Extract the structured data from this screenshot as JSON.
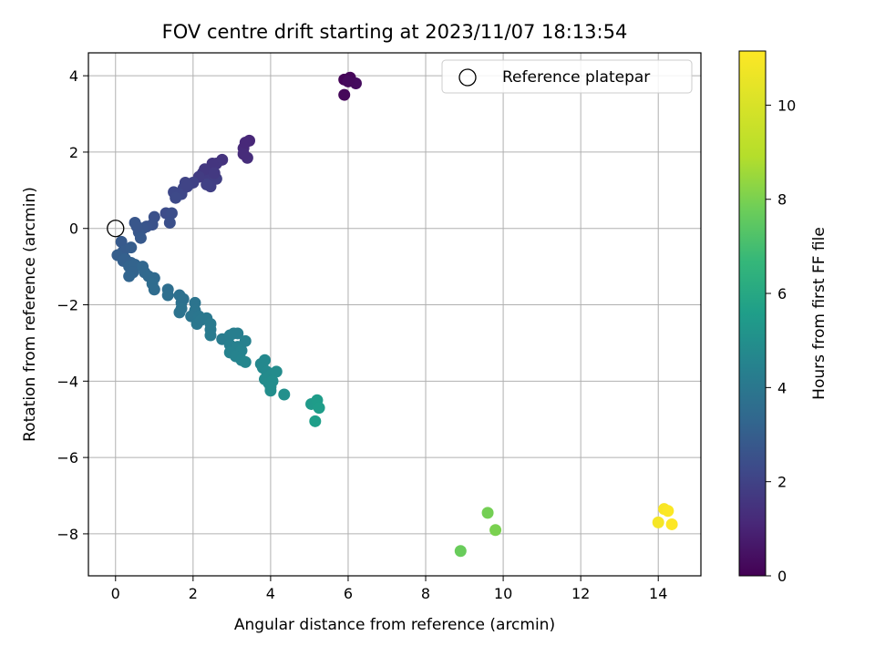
{
  "chart_data": {
    "type": "scatter",
    "title": "FOV centre drift starting at 2023/11/07 18:13:54",
    "xlabel": "Angular distance from reference (arcmin)",
    "ylabel": "Rotation from reference (arcmin)",
    "xlim": [
      -0.7,
      15.1
    ],
    "ylim": [
      -9.1,
      4.6
    ],
    "xticks": [
      0,
      2,
      4,
      6,
      8,
      10,
      12,
      14
    ],
    "yticks": [
      -8,
      -6,
      -4,
      -2,
      0,
      2,
      4
    ],
    "xtick_labels": [
      "0",
      "2",
      "4",
      "6",
      "8",
      "10",
      "12",
      "14"
    ],
    "ytick_labels": [
      "−8",
      "−6",
      "−4",
      "−2",
      "0",
      "2",
      "4"
    ],
    "grid": true,
    "legend": {
      "position": "top-right",
      "entries": [
        "Reference platepar"
      ]
    },
    "colorbar": {
      "label": "Hours from first FF file",
      "range": [
        0,
        11.15
      ],
      "ticks": [
        0,
        2,
        4,
        6,
        8,
        10
      ],
      "tick_labels": [
        "0",
        "2",
        "4",
        "6",
        "8",
        "10"
      ],
      "colormap": "viridis"
    },
    "reference_point": {
      "x": 0,
      "y": 0
    },
    "series": [
      {
        "points": [
          {
            "x": 5.9,
            "y": 3.9,
            "c": 0.1
          },
          {
            "x": 6.05,
            "y": 3.95,
            "c": 0.15
          },
          {
            "x": 6.2,
            "y": 3.8,
            "c": 0.3
          },
          {
            "x": 5.9,
            "y": 3.5,
            "c": 0.2
          },
          {
            "x": 6.0,
            "y": 3.85,
            "c": 0.25
          },
          {
            "x": 3.45,
            "y": 2.3,
            "c": 1.1
          },
          {
            "x": 3.3,
            "y": 2.1,
            "c": 1.2
          },
          {
            "x": 3.4,
            "y": 1.85,
            "c": 1.3
          },
          {
            "x": 3.35,
            "y": 2.25,
            "c": 1.15
          },
          {
            "x": 3.3,
            "y": 1.95,
            "c": 1.25
          },
          {
            "x": 2.75,
            "y": 1.8,
            "c": 1.5
          },
          {
            "x": 2.6,
            "y": 1.7,
            "c": 1.6
          },
          {
            "x": 2.5,
            "y": 1.5,
            "c": 1.7
          },
          {
            "x": 2.4,
            "y": 1.4,
            "c": 1.8
          },
          {
            "x": 2.25,
            "y": 1.45,
            "c": 1.75
          },
          {
            "x": 2.5,
            "y": 1.7,
            "c": 1.55
          },
          {
            "x": 2.6,
            "y": 1.3,
            "c": 1.85
          },
          {
            "x": 2.45,
            "y": 1.1,
            "c": 1.9
          },
          {
            "x": 2.35,
            "y": 1.15,
            "c": 1.95
          },
          {
            "x": 2.3,
            "y": 1.55,
            "c": 1.65
          },
          {
            "x": 2.15,
            "y": 1.35,
            "c": 1.8
          },
          {
            "x": 2.55,
            "y": 1.45,
            "c": 1.7
          },
          {
            "x": 2.0,
            "y": 1.2,
            "c": 2.0
          },
          {
            "x": 1.8,
            "y": 1.2,
            "c": 2.05
          },
          {
            "x": 1.75,
            "y": 1.05,
            "c": 2.1
          },
          {
            "x": 1.7,
            "y": 0.9,
            "c": 2.15
          },
          {
            "x": 1.5,
            "y": 0.95,
            "c": 2.2
          },
          {
            "x": 1.55,
            "y": 0.8,
            "c": 2.25
          },
          {
            "x": 1.85,
            "y": 1.1,
            "c": 2.05
          },
          {
            "x": 1.3,
            "y": 0.4,
            "c": 2.35
          },
          {
            "x": 1.45,
            "y": 0.4,
            "c": 2.4
          },
          {
            "x": 1.4,
            "y": 0.15,
            "c": 2.45
          },
          {
            "x": 1.0,
            "y": 0.3,
            "c": 2.5
          },
          {
            "x": 0.95,
            "y": 0.1,
            "c": 2.55
          },
          {
            "x": 0.8,
            "y": 0.05,
            "c": 2.6
          },
          {
            "x": 0.7,
            "y": 0.0,
            "c": 2.65
          },
          {
            "x": 0.5,
            "y": 0.15,
            "c": 2.7
          },
          {
            "x": 0.6,
            "y": -0.1,
            "c": 2.75
          },
          {
            "x": 0.65,
            "y": -0.25,
            "c": 2.8
          },
          {
            "x": 0.55,
            "y": 0.05,
            "c": 2.7
          },
          {
            "x": 0.15,
            "y": -0.35,
            "c": 2.85
          },
          {
            "x": 0.2,
            "y": -0.6,
            "c": 2.9
          },
          {
            "x": 0.4,
            "y": -0.5,
            "c": 2.95
          },
          {
            "x": 0.05,
            "y": -0.7,
            "c": 3.0
          },
          {
            "x": 0.25,
            "y": -0.8,
            "c": 3.05
          },
          {
            "x": 0.4,
            "y": -0.9,
            "c": 3.1
          },
          {
            "x": 0.2,
            "y": -0.85,
            "c": 3.05
          },
          {
            "x": 0.35,
            "y": -1.0,
            "c": 3.15
          },
          {
            "x": 0.5,
            "y": -0.95,
            "c": 3.2
          },
          {
            "x": 0.45,
            "y": -1.15,
            "c": 3.2
          },
          {
            "x": 0.35,
            "y": -1.25,
            "c": 3.25
          },
          {
            "x": 0.7,
            "y": -1.0,
            "c": 3.3
          },
          {
            "x": 0.75,
            "y": -1.15,
            "c": 3.35
          },
          {
            "x": 0.85,
            "y": -1.25,
            "c": 3.4
          },
          {
            "x": 1.0,
            "y": -1.3,
            "c": 3.45
          },
          {
            "x": 0.95,
            "y": -1.45,
            "c": 3.5
          },
          {
            "x": 1.0,
            "y": -1.6,
            "c": 3.5
          },
          {
            "x": 1.35,
            "y": -1.6,
            "c": 3.6
          },
          {
            "x": 1.35,
            "y": -1.75,
            "c": 3.65
          },
          {
            "x": 1.65,
            "y": -1.75,
            "c": 3.7
          },
          {
            "x": 1.7,
            "y": -1.95,
            "c": 3.75
          },
          {
            "x": 1.75,
            "y": -1.85,
            "c": 3.75
          },
          {
            "x": 1.7,
            "y": -2.1,
            "c": 3.8
          },
          {
            "x": 1.65,
            "y": -2.2,
            "c": 3.8
          },
          {
            "x": 2.05,
            "y": -1.95,
            "c": 3.85
          },
          {
            "x": 2.05,
            "y": -2.15,
            "c": 3.9
          },
          {
            "x": 1.95,
            "y": -2.3,
            "c": 3.9
          },
          {
            "x": 2.15,
            "y": -2.3,
            "c": 3.95
          },
          {
            "x": 2.1,
            "y": -2.5,
            "c": 4.0
          },
          {
            "x": 2.2,
            "y": -2.4,
            "c": 4.0
          },
          {
            "x": 2.35,
            "y": -2.35,
            "c": 4.05
          },
          {
            "x": 2.45,
            "y": -2.5,
            "c": 4.1
          },
          {
            "x": 2.45,
            "y": -2.65,
            "c": 4.1
          },
          {
            "x": 2.45,
            "y": -2.8,
            "c": 4.15
          },
          {
            "x": 2.75,
            "y": -2.9,
            "c": 4.2
          },
          {
            "x": 2.95,
            "y": -2.8,
            "c": 4.25
          },
          {
            "x": 3.05,
            "y": -2.75,
            "c": 4.3
          },
          {
            "x": 3.15,
            "y": -2.75,
            "c": 4.3
          },
          {
            "x": 2.95,
            "y": -3.05,
            "c": 4.35
          },
          {
            "x": 3.15,
            "y": -3.1,
            "c": 4.4
          },
          {
            "x": 2.95,
            "y": -3.25,
            "c": 4.45
          },
          {
            "x": 3.25,
            "y": -3.2,
            "c": 4.5
          },
          {
            "x": 3.35,
            "y": -2.95,
            "c": 4.4
          },
          {
            "x": 3.1,
            "y": -3.35,
            "c": 4.5
          },
          {
            "x": 3.25,
            "y": -3.45,
            "c": 4.55
          },
          {
            "x": 3.35,
            "y": -3.5,
            "c": 4.6
          },
          {
            "x": 3.75,
            "y": -3.55,
            "c": 4.65
          },
          {
            "x": 3.85,
            "y": -3.45,
            "c": 4.7
          },
          {
            "x": 3.8,
            "y": -3.65,
            "c": 4.7
          },
          {
            "x": 3.9,
            "y": -3.75,
            "c": 4.75
          },
          {
            "x": 4.0,
            "y": -3.85,
            "c": 4.8
          },
          {
            "x": 4.15,
            "y": -3.75,
            "c": 4.85
          },
          {
            "x": 3.85,
            "y": -3.95,
            "c": 4.8
          },
          {
            "x": 3.95,
            "y": -4.05,
            "c": 4.85
          },
          {
            "x": 4.05,
            "y": -4.0,
            "c": 4.9
          },
          {
            "x": 4.0,
            "y": -4.25,
            "c": 4.95
          },
          {
            "x": 4.0,
            "y": -4.15,
            "c": 4.9
          },
          {
            "x": 4.35,
            "y": -4.35,
            "c": 5.0
          },
          {
            "x": 5.05,
            "y": -4.6,
            "c": 5.4
          },
          {
            "x": 5.2,
            "y": -4.5,
            "c": 5.5
          },
          {
            "x": 5.25,
            "y": -4.7,
            "c": 5.55
          },
          {
            "x": 5.15,
            "y": -5.05,
            "c": 5.6
          },
          {
            "x": 8.9,
            "y": -8.45,
            "c": 7.7
          },
          {
            "x": 9.6,
            "y": -7.45,
            "c": 7.9
          },
          {
            "x": 9.8,
            "y": -7.9,
            "c": 8.0
          },
          {
            "x": 14.0,
            "y": -7.7,
            "c": 10.9
          },
          {
            "x": 14.15,
            "y": -7.35,
            "c": 11.0
          },
          {
            "x": 14.25,
            "y": -7.4,
            "c": 11.1
          },
          {
            "x": 14.35,
            "y": -7.75,
            "c": 11.15
          }
        ]
      }
    ]
  }
}
